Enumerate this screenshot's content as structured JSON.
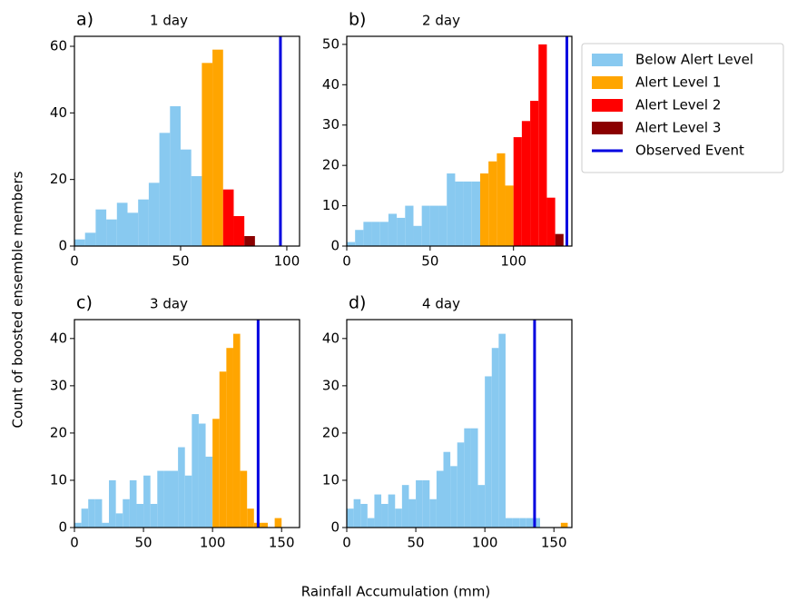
{
  "y_label": "Count of boosted ensemble members",
  "x_label": "Rainfall Accumulation (mm)",
  "chart_data": [
    {
      "type": "histogram",
      "panel": "a)",
      "title": "1 day",
      "xlim": [
        0,
        106
      ],
      "xticks": [
        0,
        50,
        100
      ],
      "ylim": [
        0,
        63
      ],
      "yticks": [
        0,
        20,
        40,
        60
      ],
      "series": [
        {
          "name": "Below Alert Level",
          "color": "#88c9f0",
          "bins": [
            0,
            5,
            10,
            15,
            20,
            25,
            30,
            35,
            40,
            45,
            50,
            55,
            60
          ],
          "values": [
            2,
            4,
            11,
            8,
            13,
            10,
            14,
            19,
            34,
            42,
            29,
            21
          ]
        },
        {
          "name": "Alert Level 1",
          "color": "#ffa500",
          "bins": [
            60,
            65,
            70
          ],
          "values": [
            55,
            59
          ]
        },
        {
          "name": "Alert Level 2",
          "color": "#ff0000",
          "bins": [
            70,
            75,
            80
          ],
          "values": [
            17,
            9
          ]
        },
        {
          "name": "Alert Level 3",
          "color": "#8b0000",
          "bins": [
            80,
            85
          ],
          "values": [
            3
          ]
        },
        {
          "name": "Observed Event",
          "type": "vline",
          "color": "#0000e0",
          "value": 97
        }
      ]
    },
    {
      "type": "histogram",
      "panel": "b)",
      "title": "2 day",
      "xlim": [
        0,
        135
      ],
      "xticks": [
        0,
        50,
        100
      ],
      "ylim": [
        0,
        52
      ],
      "yticks": [
        0,
        10,
        20,
        30,
        40,
        50
      ],
      "series": [
        {
          "name": "Below Alert Level",
          "color": "#88c9f0",
          "bins": [
            0,
            5,
            10,
            15,
            20,
            25,
            30,
            35,
            40,
            45,
            50,
            55,
            60,
            65,
            70,
            75,
            80
          ],
          "values": [
            1,
            4,
            6,
            6,
            6,
            8,
            7,
            10,
            5,
            10,
            10,
            10,
            18,
            16,
            16,
            16
          ]
        },
        {
          "name": "Alert Level 1",
          "color": "#ffa500",
          "bins": [
            80,
            85,
            90,
            95,
            100
          ],
          "values": [
            18,
            21,
            23,
            15
          ]
        },
        {
          "name": "Alert Level 2",
          "color": "#ff0000",
          "bins": [
            100,
            105,
            110,
            115,
            120,
            125
          ],
          "values": [
            27,
            31,
            36,
            50,
            12
          ]
        },
        {
          "name": "Alert Level 3",
          "color": "#8b0000",
          "bins": [
            125,
            130
          ],
          "values": [
            3
          ]
        },
        {
          "name": "Observed Event",
          "type": "vline",
          "color": "#0000e0",
          "value": 132
        }
      ]
    },
    {
      "type": "histogram",
      "panel": "c)",
      "title": "3 day",
      "xlim": [
        0,
        163
      ],
      "xticks": [
        0,
        50,
        100,
        150
      ],
      "ylim": [
        0,
        44
      ],
      "yticks": [
        0,
        10,
        20,
        30,
        40
      ],
      "series": [
        {
          "name": "Below Alert Level",
          "color": "#88c9f0",
          "bins": [
            0,
            5,
            10,
            15,
            20,
            25,
            30,
            35,
            40,
            45,
            50,
            55,
            60,
            65,
            70,
            75,
            80,
            85,
            90,
            95,
            100
          ],
          "values": [
            1,
            4,
            6,
            6,
            1,
            10,
            3,
            6,
            10,
            5,
            11,
            5,
            12,
            12,
            12,
            17,
            11,
            24,
            22,
            15
          ]
        },
        {
          "name": "Alert Level 1",
          "color": "#ffa500",
          "bins": [
            100,
            105,
            110,
            115,
            120,
            125,
            130,
            135,
            140,
            145,
            150
          ],
          "values": [
            23,
            33,
            38,
            41,
            12,
            4,
            1,
            1,
            0,
            2
          ]
        },
        {
          "name": "Observed Event",
          "type": "vline",
          "color": "#0000e0",
          "value": 133
        }
      ]
    },
    {
      "type": "histogram",
      "panel": "d)",
      "title": "4 day",
      "xlim": [
        0,
        163
      ],
      "xticks": [
        0,
        50,
        100,
        150
      ],
      "ylim": [
        0,
        44
      ],
      "yticks": [
        0,
        10,
        20,
        30,
        40
      ],
      "series": [
        {
          "name": "Below Alert Level",
          "color": "#88c9f0",
          "bins": [
            0,
            5,
            10,
            15,
            20,
            25,
            30,
            35,
            40,
            45,
            50,
            55,
            60,
            65,
            70,
            75,
            80,
            85,
            90,
            95,
            100,
            105,
            110,
            115,
            120,
            125,
            130,
            135,
            140
          ],
          "values": [
            4,
            6,
            5,
            2,
            7,
            5,
            7,
            4,
            9,
            6,
            10,
            10,
            6,
            12,
            16,
            13,
            18,
            21,
            21,
            9,
            32,
            38,
            41,
            2,
            2,
            2,
            2,
            2
          ]
        },
        {
          "name": "Alert Level 1",
          "color": "#ffa500",
          "bins": [
            155,
            160
          ],
          "values": [
            1
          ]
        },
        {
          "name": "Observed Event",
          "type": "vline",
          "color": "#0000e0",
          "value": 136
        }
      ]
    }
  ]
}
